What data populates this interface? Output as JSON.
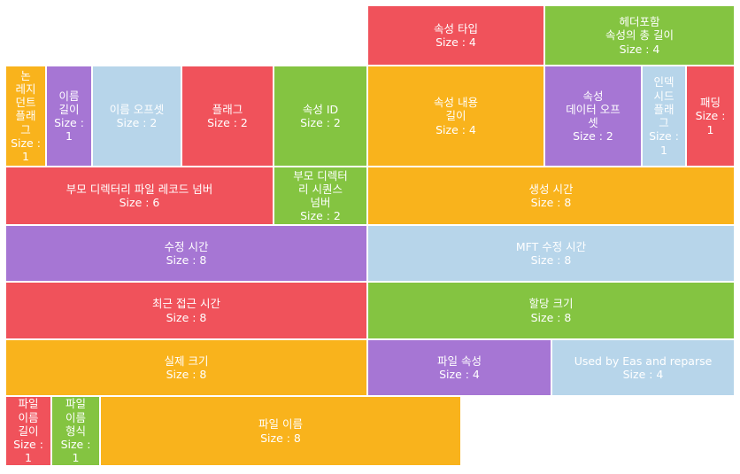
{
  "palette": {
    "red": "#F0525B",
    "green": "#84C441",
    "orange": "#F9B31C",
    "purple": "#A676D4",
    "blue": "#B7D5EA"
  },
  "cells": [
    {
      "id": "attr-type",
      "name": "속성 타입",
      "size": "Size : 4",
      "color": "red"
    },
    {
      "id": "header-attr-length",
      "name": "헤더포함\n속성의 총 길이",
      "size": "Size : 4",
      "color": "green"
    },
    {
      "id": "nonresident-flag",
      "name": "논\n레지\n던트\n플래\n그",
      "size": "Size :\n1",
      "color": "orange"
    },
    {
      "id": "name-length",
      "name": "이름\n길이",
      "size": "Size :\n1",
      "color": "purple"
    },
    {
      "id": "name-offset",
      "name": "이름 오프셋",
      "size": "Size : 2",
      "color": "blue"
    },
    {
      "id": "flags",
      "name": "플래그",
      "size": "Size : 2",
      "color": "red"
    },
    {
      "id": "attr-id",
      "name": "속성 ID",
      "size": "Size : 2",
      "color": "green"
    },
    {
      "id": "attr-content-length",
      "name": "속성 내용\n길이",
      "size": "Size : 4",
      "color": "orange"
    },
    {
      "id": "attr-data-offset",
      "name": "속성\n데이터 오프\n셋",
      "size": "Size : 2",
      "color": "purple"
    },
    {
      "id": "indexed-flag",
      "name": "인덱\n시드\n플래\n그",
      "size": "Size :\n1",
      "color": "blue"
    },
    {
      "id": "padding",
      "name": "패딩",
      "size": "Size :\n1",
      "color": "red"
    },
    {
      "id": "parent-dir-record",
      "name": "부모 디렉터리 파일 레코드 넘버",
      "size": "Size : 6",
      "color": "red"
    },
    {
      "id": "parent-dir-seq",
      "name": "부모 디렉터\n리 시퀀스\n넘버",
      "size": "Size : 2",
      "color": "green"
    },
    {
      "id": "created-time",
      "name": "생성 시간",
      "size": "Size : 8",
      "color": "orange"
    },
    {
      "id": "modified-time",
      "name": "수정 시간",
      "size": "Size : 8",
      "color": "purple"
    },
    {
      "id": "mft-modified-time",
      "name": "MFT 수정 시간",
      "size": "Size : 8",
      "color": "blue"
    },
    {
      "id": "last-access-time",
      "name": "최근 접근 시간",
      "size": "Size : 8",
      "color": "red"
    },
    {
      "id": "allocated-size",
      "name": "할당 크기",
      "size": "Size : 8",
      "color": "green"
    },
    {
      "id": "real-size",
      "name": "실제 크기",
      "size": "Size : 8",
      "color": "orange"
    },
    {
      "id": "file-attributes",
      "name": "파일 속성",
      "size": "Size : 4",
      "color": "purple"
    },
    {
      "id": "eas-reparse",
      "name": "Used by Eas and reparse",
      "size": "Size : 4",
      "color": "blue"
    },
    {
      "id": "filename-length",
      "name": "파일\n이름\n길이",
      "size": "Size :\n1",
      "color": "red"
    },
    {
      "id": "filename-namespace",
      "name": "파일\n이름\n형식",
      "size": "Size :\n1",
      "color": "green"
    },
    {
      "id": "filename",
      "name": "파일 이름",
      "size": "Size : 8",
      "color": "orange"
    }
  ]
}
